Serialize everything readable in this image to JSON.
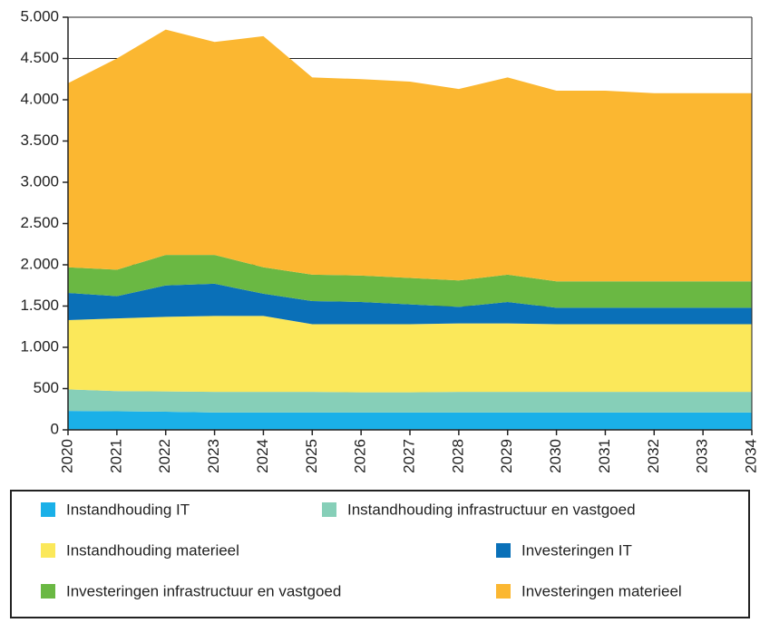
{
  "chart_data": {
    "type": "stacked_area",
    "categories": [
      "2020",
      "2021",
      "2022",
      "2023",
      "2024",
      "2025",
      "2026",
      "2027",
      "2028",
      "2029",
      "2030",
      "2031",
      "2032",
      "2033",
      "2034"
    ],
    "series": [
      {
        "name": "Instandhouding IT",
        "color": "#1ab0e8",
        "values": [
          230,
          225,
          220,
          210,
          210,
          210,
          210,
          210,
          210,
          210,
          210,
          210,
          210,
          210,
          210
        ]
      },
      {
        "name": "Instandhouding infrastructuur en vastgoed",
        "color": "#86cfb8",
        "values": [
          260,
          245,
          245,
          250,
          250,
          250,
          245,
          245,
          250,
          250,
          250,
          250,
          250,
          250,
          250
        ]
      },
      {
        "name": "Instandhouding materieel",
        "color": "#fbe85a",
        "values": [
          840,
          880,
          905,
          920,
          920,
          820,
          825,
          825,
          830,
          830,
          820,
          820,
          820,
          820,
          820
        ]
      },
      {
        "name": "Investeringen IT",
        "color": "#0a70b8",
        "values": [
          330,
          270,
          380,
          390,
          270,
          280,
          270,
          240,
          200,
          260,
          200,
          200,
          200,
          200,
          200
        ]
      },
      {
        "name": "Investeringen infrastructuur en vastgoed",
        "color": "#6ab843",
        "values": [
          310,
          320,
          370,
          350,
          320,
          320,
          320,
          320,
          320,
          330,
          320,
          320,
          320,
          320,
          320
        ]
      },
      {
        "name": "Investeringen materieel",
        "color": "#fbb731",
        "values": [
          2230,
          2560,
          2730,
          2580,
          2800,
          2390,
          2380,
          2380,
          2320,
          2390,
          2310,
          2310,
          2280,
          2280,
          2280
        ]
      }
    ],
    "ylim": [
      0,
      5000
    ],
    "yticks": [
      0,
      500,
      {
        "value": 1000,
        "label": "1.000"
      },
      {
        "value": 1500,
        "label": "1.500"
      },
      {
        "value": 2000,
        "label": "2.000"
      },
      {
        "value": 2500,
        "label": "2.500"
      },
      {
        "value": 3000,
        "label": "3.000"
      },
      {
        "value": 3500,
        "label": "3.500"
      },
      {
        "value": 4000,
        "label": "4.000"
      },
      {
        "value": 4500,
        "label": "4.500"
      },
      {
        "value": 5000,
        "label": "5.000"
      }
    ],
    "grid": true
  }
}
